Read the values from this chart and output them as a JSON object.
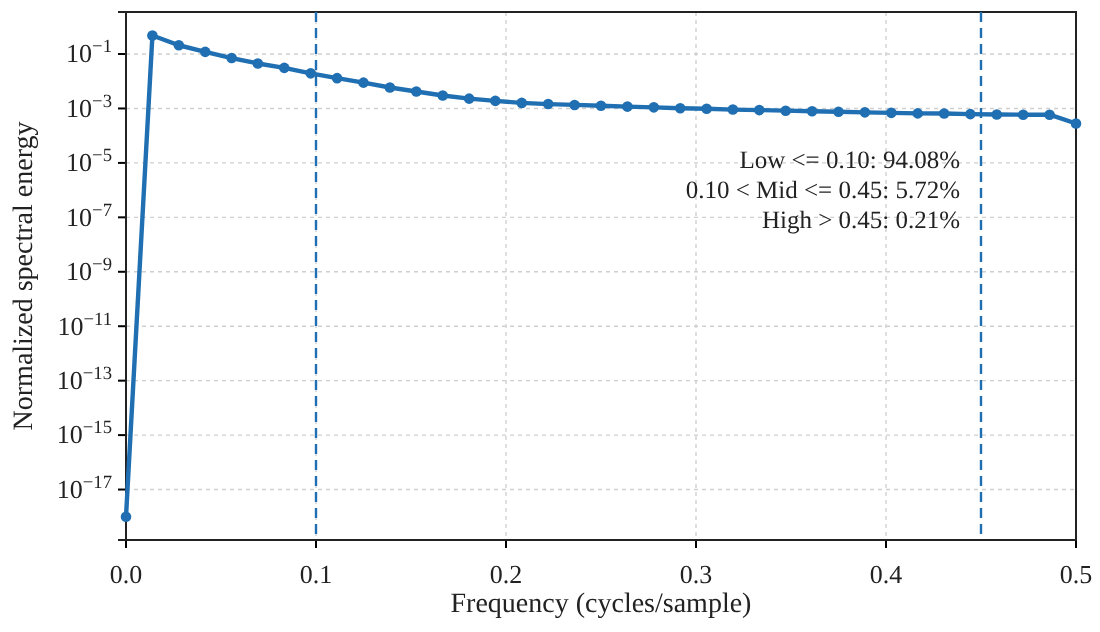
{
  "chart_data": {
    "type": "line",
    "xlabel": "Frequency (cycles/sample)",
    "ylabel": "Normalized spectral energy",
    "x": [
      0,
      0.0139,
      0.0278,
      0.0417,
      0.0556,
      0.0694,
      0.0833,
      0.0972,
      0.1111,
      0.125,
      0.1389,
      0.1528,
      0.1667,
      0.1806,
      0.1944,
      0.2083,
      0.2222,
      0.2361,
      0.25,
      0.2639,
      0.2778,
      0.2917,
      0.3056,
      0.3194,
      0.3333,
      0.3472,
      0.3611,
      0.375,
      0.3889,
      0.4028,
      0.4167,
      0.4306,
      0.4444,
      0.4583,
      0.4722,
      0.4861,
      0.5
    ],
    "series": [
      {
        "color": "#1f6fb2",
        "values": [
          1e-18,
          0.48,
          0.21,
          0.12,
          0.071,
          0.045,
          0.031,
          0.0195,
          0.013,
          0.0089,
          0.0059,
          0.0042,
          0.003,
          0.0023,
          0.0019,
          0.0016,
          0.00145,
          0.00135,
          0.00126,
          0.00117,
          0.0011,
          0.00102,
          0.00098,
          0.00091,
          0.00087,
          0.00083,
          0.00079,
          0.00076,
          0.00072,
          0.00069,
          0.00066,
          0.00065,
          0.00062,
          0.0006,
          0.00059,
          0.00059,
          0.00028
        ]
      }
    ],
    "log": "y",
    "xlim": [
      0,
      0.5
    ],
    "ylim": [
      1.4e-19,
      3.5
    ],
    "xticks": [
      {
        "value": 0,
        "label": "0.0"
      },
      {
        "value": 0.1,
        "label": "0.1"
      },
      {
        "value": 0.2,
        "label": "0.2"
      },
      {
        "value": 0.3,
        "label": "0.3"
      },
      {
        "value": 0.4,
        "label": "0.4"
      },
      {
        "value": 0.5,
        "label": "0.5"
      }
    ],
    "yticks": [
      {
        "value": 1e-17,
        "label": "10$^{−17}$"
      },
      {
        "value": 1e-15,
        "label": "10$^{−15}$"
      },
      {
        "value": 1e-13,
        "label": "10$^{−13}$"
      },
      {
        "value": 1e-11,
        "label": "10$^{−11}$"
      },
      {
        "value": 1e-09,
        "label": "10$^{−9}$"
      },
      {
        "value": 1e-07,
        "label": "10$^{−7}$"
      },
      {
        "value": 1e-05,
        "label": "10$^{−5}$"
      },
      {
        "value": 0.001,
        "label": "10$^{−3}$"
      },
      {
        "value": 0.1,
        "label": "10$^{−1}$"
      }
    ],
    "grid": true,
    "marker": "circle",
    "line_style": "solid",
    "ref_lines": [
      {
        "axis": "x",
        "value": 0.1,
        "color": "#1f6fb2",
        "line_style": "dashed"
      },
      {
        "axis": "x",
        "value": 0.45,
        "color": "#1f6fb2",
        "line_style": "dashed"
      }
    ],
    "annotations": [
      "Low <= 0.10: 94.08%",
      "0.10 < Mid <= 0.45: 5.72%",
      "High > 0.45: 0.21%"
    ]
  }
}
